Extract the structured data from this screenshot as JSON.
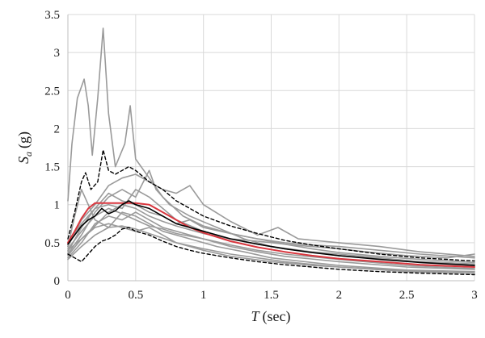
{
  "chart_data": {
    "type": "line",
    "xlabel": {
      "symbol": "T",
      "unit": "(sec)"
    },
    "ylabel": {
      "symbol": "S",
      "subscript": "a",
      "unit": "(g)"
    },
    "xlim": [
      0,
      3
    ],
    "ylim": [
      0,
      3.5
    ],
    "x_ticks": [
      "0",
      "0.5",
      "1",
      "1.5",
      "2",
      "2.5",
      "3"
    ],
    "y_ticks": [
      "0",
      "0.5",
      "1",
      "1.5",
      "2",
      "2.5",
      "3",
      "3.5"
    ],
    "grid": true,
    "legend": "none",
    "series": [
      {
        "style": "individual",
        "color": "#9a9a9a",
        "points": [
          [
            0,
            1.05
          ],
          [
            0.03,
            1.8
          ],
          [
            0.07,
            2.4
          ],
          [
            0.12,
            2.65
          ],
          [
            0.15,
            2.3
          ],
          [
            0.18,
            1.65
          ],
          [
            0.22,
            2.4
          ],
          [
            0.26,
            3.32
          ],
          [
            0.3,
            2.2
          ],
          [
            0.35,
            1.5
          ],
          [
            0.42,
            1.8
          ],
          [
            0.46,
            2.3
          ],
          [
            0.5,
            1.6
          ],
          [
            0.6,
            1.35
          ],
          [
            0.7,
            1.1
          ],
          [
            0.85,
            0.85
          ],
          [
            1.0,
            0.72
          ],
          [
            1.2,
            0.62
          ],
          [
            1.4,
            0.55
          ],
          [
            1.6,
            0.48
          ],
          [
            1.8,
            0.42
          ],
          [
            2.0,
            0.37
          ],
          [
            2.3,
            0.32
          ],
          [
            2.6,
            0.28
          ],
          [
            3.0,
            0.24
          ]
        ]
      },
      {
        "style": "individual",
        "color": "#9a9a9a",
        "points": [
          [
            0,
            0.45
          ],
          [
            0.1,
            0.8
          ],
          [
            0.2,
            1.0
          ],
          [
            0.3,
            1.25
          ],
          [
            0.4,
            1.35
          ],
          [
            0.5,
            1.4
          ],
          [
            0.6,
            1.3
          ],
          [
            0.7,
            1.2
          ],
          [
            0.8,
            1.15
          ],
          [
            0.9,
            1.25
          ],
          [
            1.0,
            1.0
          ],
          [
            1.2,
            0.78
          ],
          [
            1.4,
            0.6
          ],
          [
            1.55,
            0.7
          ],
          [
            1.7,
            0.55
          ],
          [
            2.0,
            0.5
          ],
          [
            2.3,
            0.45
          ],
          [
            2.6,
            0.38
          ],
          [
            3.0,
            0.32
          ]
        ]
      },
      {
        "style": "individual",
        "color": "#9a9a9a",
        "points": [
          [
            0,
            0.35
          ],
          [
            0.1,
            0.6
          ],
          [
            0.2,
            0.9
          ],
          [
            0.3,
            1.1
          ],
          [
            0.4,
            1.2
          ],
          [
            0.5,
            1.1
          ],
          [
            0.6,
            1.45
          ],
          [
            0.65,
            1.2
          ],
          [
            0.75,
            1.0
          ],
          [
            0.9,
            0.85
          ],
          [
            1.1,
            0.7
          ],
          [
            1.3,
            0.55
          ],
          [
            1.5,
            0.45
          ],
          [
            1.8,
            0.38
          ],
          [
            2.0,
            0.35
          ],
          [
            2.3,
            0.3
          ],
          [
            2.6,
            0.25
          ],
          [
            3.0,
            0.2
          ]
        ]
      },
      {
        "style": "individual",
        "color": "#9a9a9a",
        "points": [
          [
            0,
            0.5
          ],
          [
            0.1,
            0.75
          ],
          [
            0.2,
            0.95
          ],
          [
            0.3,
            1.0
          ],
          [
            0.4,
            0.95
          ],
          [
            0.5,
            1.2
          ],
          [
            0.6,
            1.1
          ],
          [
            0.7,
            0.95
          ],
          [
            0.8,
            0.8
          ],
          [
            1.0,
            0.65
          ],
          [
            1.2,
            0.55
          ],
          [
            1.4,
            0.48
          ],
          [
            1.6,
            0.42
          ],
          [
            2.0,
            0.33
          ],
          [
            2.5,
            0.26
          ],
          [
            3.0,
            0.22
          ]
        ]
      },
      {
        "style": "individual",
        "color": "#9a9a9a",
        "points": [
          [
            0,
            0.3
          ],
          [
            0.1,
            0.5
          ],
          [
            0.2,
            0.75
          ],
          [
            0.3,
            0.85
          ],
          [
            0.4,
            0.8
          ],
          [
            0.5,
            0.9
          ],
          [
            0.6,
            0.8
          ],
          [
            0.7,
            0.7
          ],
          [
            0.8,
            0.65
          ],
          [
            1.0,
            0.55
          ],
          [
            1.2,
            0.45
          ],
          [
            1.4,
            0.38
          ],
          [
            1.6,
            0.32
          ],
          [
            2.0,
            0.25
          ],
          [
            2.5,
            0.18
          ],
          [
            3.0,
            0.15
          ]
        ]
      },
      {
        "style": "individual",
        "color": "#9a9a9a",
        "points": [
          [
            0,
            0.4
          ],
          [
            0.1,
            0.55
          ],
          [
            0.2,
            0.7
          ],
          [
            0.3,
            0.75
          ],
          [
            0.4,
            0.7
          ],
          [
            0.5,
            0.65
          ],
          [
            0.6,
            0.7
          ],
          [
            0.7,
            0.6
          ],
          [
            0.8,
            0.5
          ],
          [
            1.0,
            0.42
          ],
          [
            1.2,
            0.35
          ],
          [
            1.4,
            0.3
          ],
          [
            1.6,
            0.25
          ],
          [
            2.0,
            0.18
          ],
          [
            2.5,
            0.12
          ],
          [
            3.0,
            0.1
          ]
        ]
      },
      {
        "style": "individual",
        "color": "#9a9a9a",
        "points": [
          [
            0,
            0.45
          ],
          [
            0.05,
            0.85
          ],
          [
            0.1,
            1.2
          ],
          [
            0.15,
            1.0
          ],
          [
            0.2,
            0.8
          ],
          [
            0.3,
            0.7
          ],
          [
            0.4,
            0.9
          ],
          [
            0.5,
            0.85
          ],
          [
            0.6,
            0.75
          ],
          [
            0.7,
            0.65
          ],
          [
            0.9,
            0.55
          ],
          [
            1.1,
            0.45
          ],
          [
            1.3,
            0.38
          ],
          [
            1.5,
            0.3
          ],
          [
            1.8,
            0.24
          ],
          [
            2.0,
            0.2
          ],
          [
            2.5,
            0.14
          ],
          [
            3.0,
            0.12
          ]
        ]
      },
      {
        "style": "individual",
        "color": "#9a9a9a",
        "points": [
          [
            0,
            0.28
          ],
          [
            0.1,
            0.45
          ],
          [
            0.2,
            0.6
          ],
          [
            0.3,
            0.7
          ],
          [
            0.4,
            0.72
          ],
          [
            0.5,
            0.68
          ],
          [
            0.6,
            0.62
          ],
          [
            0.8,
            0.5
          ],
          [
            1.0,
            0.4
          ],
          [
            1.2,
            0.32
          ],
          [
            1.5,
            0.25
          ],
          [
            1.8,
            0.2
          ],
          [
            2.0,
            0.18
          ],
          [
            2.5,
            0.13
          ],
          [
            3.0,
            0.1
          ]
        ]
      },
      {
        "style": "individual",
        "color": "#9a9a9a",
        "points": [
          [
            0,
            0.38
          ],
          [
            0.1,
            0.7
          ],
          [
            0.2,
            0.95
          ],
          [
            0.3,
            1.15
          ],
          [
            0.4,
            1.05
          ],
          [
            0.5,
            1.0
          ],
          [
            0.6,
            0.9
          ],
          [
            0.7,
            0.85
          ],
          [
            0.8,
            0.75
          ],
          [
            0.9,
            0.8
          ],
          [
            1.0,
            0.7
          ],
          [
            1.2,
            0.62
          ],
          [
            1.4,
            0.55
          ],
          [
            1.6,
            0.5
          ],
          [
            1.8,
            0.47
          ],
          [
            2.0,
            0.45
          ],
          [
            2.3,
            0.4
          ],
          [
            2.6,
            0.35
          ],
          [
            3.0,
            0.3
          ]
        ]
      },
      {
        "style": "individual",
        "color": "#9a9a9a",
        "points": [
          [
            0,
            0.33
          ],
          [
            0.1,
            0.55
          ],
          [
            0.2,
            0.72
          ],
          [
            0.3,
            0.9
          ],
          [
            0.4,
            1.0
          ],
          [
            0.5,
            0.95
          ],
          [
            0.6,
            0.85
          ],
          [
            0.7,
            0.78
          ],
          [
            0.8,
            0.72
          ],
          [
            1.0,
            0.62
          ],
          [
            1.2,
            0.55
          ],
          [
            1.4,
            0.52
          ],
          [
            1.6,
            0.48
          ],
          [
            1.8,
            0.45
          ],
          [
            2.0,
            0.42
          ],
          [
            2.2,
            0.38
          ],
          [
            2.5,
            0.33
          ],
          [
            2.8,
            0.3
          ],
          [
            3.0,
            0.35
          ]
        ]
      },
      {
        "style": "individual",
        "color": "#9a9a9a",
        "points": [
          [
            0,
            0.42
          ],
          [
            0.1,
            0.65
          ],
          [
            0.2,
            0.85
          ],
          [
            0.3,
            0.95
          ],
          [
            0.4,
            0.88
          ],
          [
            0.5,
            0.8
          ],
          [
            0.6,
            0.72
          ],
          [
            0.7,
            0.68
          ],
          [
            0.8,
            0.62
          ],
          [
            1.0,
            0.55
          ],
          [
            1.2,
            0.47
          ],
          [
            1.4,
            0.4
          ],
          [
            1.6,
            0.35
          ],
          [
            2.0,
            0.28
          ],
          [
            2.5,
            0.2
          ],
          [
            3.0,
            0.16
          ]
        ]
      },
      {
        "style": "target",
        "color": "#d9363e",
        "points": [
          [
            0,
            0.5
          ],
          [
            0.05,
            0.65
          ],
          [
            0.1,
            0.82
          ],
          [
            0.15,
            0.95
          ],
          [
            0.2,
            1.02
          ],
          [
            0.3,
            1.02
          ],
          [
            0.4,
            1.02
          ],
          [
            0.5,
            1.02
          ],
          [
            0.6,
            1.0
          ],
          [
            0.7,
            0.9
          ],
          [
            0.8,
            0.8
          ],
          [
            0.9,
            0.7
          ],
          [
            1.0,
            0.63
          ],
          [
            1.2,
            0.52
          ],
          [
            1.4,
            0.44
          ],
          [
            1.6,
            0.38
          ],
          [
            1.8,
            0.33
          ],
          [
            2.0,
            0.29
          ],
          [
            2.3,
            0.25
          ],
          [
            2.6,
            0.21
          ],
          [
            3.0,
            0.18
          ]
        ]
      },
      {
        "style": "mean",
        "color": "#000000",
        "points": [
          [
            0,
            0.48
          ],
          [
            0.05,
            0.6
          ],
          [
            0.1,
            0.72
          ],
          [
            0.15,
            0.8
          ],
          [
            0.2,
            0.85
          ],
          [
            0.25,
            0.95
          ],
          [
            0.3,
            0.88
          ],
          [
            0.35,
            0.92
          ],
          [
            0.4,
            1.0
          ],
          [
            0.45,
            1.05
          ],
          [
            0.5,
            1.0
          ],
          [
            0.6,
            0.95
          ],
          [
            0.7,
            0.85
          ],
          [
            0.8,
            0.75
          ],
          [
            0.9,
            0.7
          ],
          [
            1.0,
            0.65
          ],
          [
            1.2,
            0.55
          ],
          [
            1.4,
            0.48
          ],
          [
            1.6,
            0.42
          ],
          [
            1.8,
            0.37
          ],
          [
            2.0,
            0.33
          ],
          [
            2.3,
            0.28
          ],
          [
            2.6,
            0.24
          ],
          [
            3.0,
            0.2
          ]
        ]
      },
      {
        "style": "upper-bound",
        "color": "#000000",
        "points": [
          [
            0,
            0.55
          ],
          [
            0.05,
            0.9
          ],
          [
            0.1,
            1.3
          ],
          [
            0.13,
            1.42
          ],
          [
            0.17,
            1.2
          ],
          [
            0.22,
            1.3
          ],
          [
            0.26,
            1.72
          ],
          [
            0.3,
            1.45
          ],
          [
            0.35,
            1.4
          ],
          [
            0.4,
            1.45
          ],
          [
            0.45,
            1.5
          ],
          [
            0.5,
            1.45
          ],
          [
            0.6,
            1.3
          ],
          [
            0.7,
            1.2
          ],
          [
            0.8,
            1.05
          ],
          [
            0.9,
            0.95
          ],
          [
            1.0,
            0.85
          ],
          [
            1.2,
            0.72
          ],
          [
            1.4,
            0.62
          ],
          [
            1.6,
            0.53
          ],
          [
            1.8,
            0.47
          ],
          [
            2.0,
            0.42
          ],
          [
            2.3,
            0.35
          ],
          [
            2.6,
            0.3
          ],
          [
            3.0,
            0.26
          ]
        ]
      },
      {
        "style": "lower-bound",
        "color": "#000000",
        "points": [
          [
            0,
            0.35
          ],
          [
            0.05,
            0.3
          ],
          [
            0.1,
            0.25
          ],
          [
            0.15,
            0.35
          ],
          [
            0.2,
            0.45
          ],
          [
            0.25,
            0.52
          ],
          [
            0.3,
            0.55
          ],
          [
            0.35,
            0.6
          ],
          [
            0.4,
            0.68
          ],
          [
            0.45,
            0.7
          ],
          [
            0.5,
            0.65
          ],
          [
            0.6,
            0.6
          ],
          [
            0.7,
            0.52
          ],
          [
            0.8,
            0.45
          ],
          [
            0.9,
            0.4
          ],
          [
            1.0,
            0.36
          ],
          [
            1.2,
            0.3
          ],
          [
            1.4,
            0.25
          ],
          [
            1.6,
            0.21
          ],
          [
            1.8,
            0.18
          ],
          [
            2.0,
            0.15
          ],
          [
            2.3,
            0.12
          ],
          [
            2.6,
            0.1
          ],
          [
            3.0,
            0.08
          ]
        ]
      }
    ]
  }
}
